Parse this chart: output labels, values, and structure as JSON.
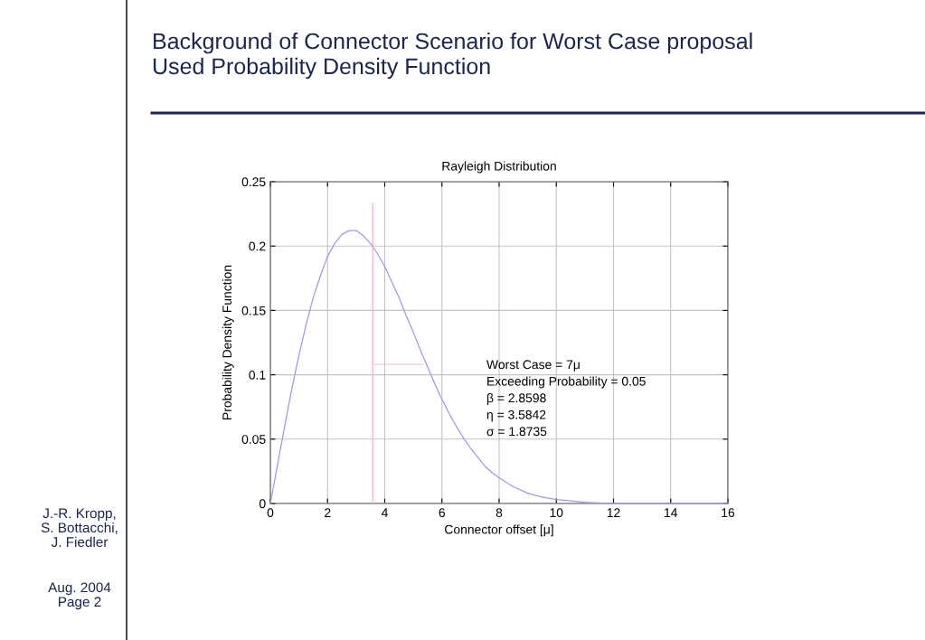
{
  "chart_data": {
    "type": "line",
    "title": "Background of Connector Scenario for Worst Case proposal\nUsed Probability Density Function",
    "subtitle": "Rayleigh Distribution",
    "xlabel": "Connector offset [μ]",
    "ylabel": "Probability Density Function",
    "annotations": [
      "Worst Case = 7μ\nExceeding Probability = 0.05\nβ = 2.8598\nη = 3.5842\nσ = 1.8735",
      "J.-R. Kropp,\nS. Bottacchi,\nJ. Fiedler",
      "Aug. 2004\nPage 2"
    ],
    "series": [
      {
        "color": "#9a9aec",
        "x": [
          0,
          0.25,
          0.5,
          0.75,
          1,
          1.25,
          1.5,
          1.75,
          2,
          2.25,
          2.5,
          2.75,
          2.86,
          3,
          3.25,
          3.5,
          3.75,
          4,
          4.25,
          4.5,
          4.75,
          5,
          5.25,
          5.5,
          5.75,
          6,
          6.25,
          6.5,
          6.75,
          7,
          7.25,
          7.5,
          7.75,
          8,
          8.5,
          9,
          9.5,
          10,
          10.5,
          11,
          12,
          14,
          16
        ],
        "values": [
          0,
          0.03,
          0.06,
          0.089,
          0.115,
          0.139,
          0.16,
          0.177,
          0.192,
          0.202,
          0.209,
          0.212,
          0.212,
          0.212,
          0.208,
          0.202,
          0.194,
          0.184,
          0.172,
          0.16,
          0.146,
          0.133,
          0.119,
          0.106,
          0.093,
          0.081,
          0.07,
          0.06,
          0.051,
          0.043,
          0.036,
          0.029,
          0.024,
          0.02,
          0.013,
          0.008,
          0.005,
          0.003,
          0.002,
          0.001,
          0,
          0,
          0
        ]
      },
      {
        "color": "#ffb0bc",
        "x": [
          3.58,
          3.58
        ],
        "values": [
          0,
          0.233
        ]
      },
      {
        "color": "#f4cccc",
        "x": [
          3.58,
          5.32
        ],
        "values": [
          0.108,
          0.108
        ]
      }
    ],
    "xlim": [
      0,
      16
    ],
    "ylim": [
      0,
      0.25
    ],
    "xticks": [
      0,
      2,
      4,
      6,
      8,
      10,
      12,
      14,
      16
    ],
    "yticks": [
      0,
      0.05,
      0.1,
      0.15,
      0.2,
      0.25
    ],
    "grid": true
  }
}
